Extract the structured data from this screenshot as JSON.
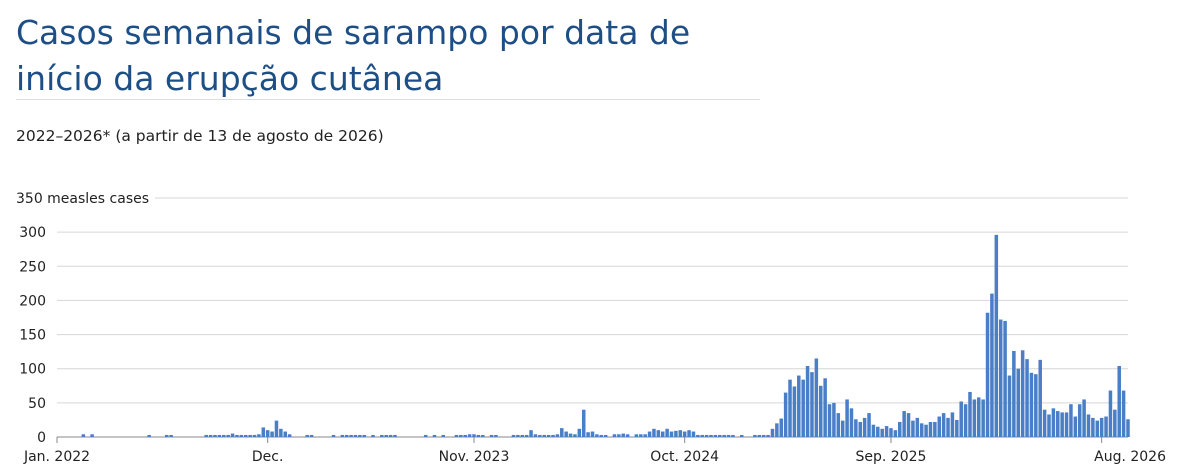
{
  "title": "Casos semanais de sarampo por data de início da erupção cutânea",
  "subtitle": "2022–2026* (a partir de 13 de agosto de 2026)",
  "chart_data": {
    "type": "bar",
    "ylabel": "350 measles cases",
    "ylim": [
      0,
      350
    ],
    "yticks": [
      0,
      50,
      100,
      150,
      200,
      250,
      300,
      350
    ],
    "ytick_labels": [
      "0",
      "50",
      "100",
      "150",
      "200",
      "250",
      "300",
      "350 measles cases"
    ],
    "xtick_labels": [
      "Jan. 2022",
      "Dec.",
      "Nov. 2023",
      "Oct. 2024",
      "Sep. 2025",
      "Aug. 2026"
    ],
    "xtick_week_index": [
      0,
      48,
      95,
      143,
      190,
      238
    ],
    "grid": true,
    "bar_color": "#4a7fc8",
    "series": [
      {
        "values": [
          0,
          0,
          0,
          0,
          0,
          0,
          4,
          0,
          4,
          0,
          0,
          0,
          0,
          0,
          0,
          0,
          0,
          0,
          0,
          0,
          0,
          3,
          0,
          0,
          0,
          3,
          3,
          0,
          0,
          0,
          0,
          0,
          0,
          0,
          3,
          3,
          3,
          3,
          3,
          3,
          5,
          3,
          3,
          3,
          3,
          3,
          4,
          14,
          10,
          8,
          24,
          12,
          8,
          4,
          0,
          0,
          0,
          3,
          3,
          0,
          0,
          0,
          0,
          3,
          0,
          3,
          3,
          3,
          3,
          3,
          3,
          0,
          3,
          0,
          3,
          3,
          3,
          3,
          0,
          0,
          0,
          0,
          0,
          0,
          3,
          0,
          3,
          0,
          3,
          0,
          0,
          3,
          3,
          3,
          4,
          4,
          3,
          3,
          0,
          3,
          3,
          0,
          0,
          0,
          3,
          3,
          3,
          3,
          10,
          4,
          3,
          3,
          3,
          3,
          4,
          13,
          8,
          5,
          4,
          12,
          40,
          7,
          8,
          4,
          3,
          3,
          0,
          4,
          4,
          5,
          4,
          0,
          4,
          4,
          4,
          8,
          12,
          10,
          8,
          12,
          8,
          9,
          10,
          8,
          10,
          8,
          3,
          3,
          3,
          3,
          3,
          3,
          3,
          3,
          3,
          0,
          3,
          0,
          0,
          3,
          3,
          3,
          3,
          12,
          20,
          27,
          65,
          84,
          74,
          90,
          84,
          104,
          95,
          115,
          75,
          86,
          48,
          50,
          35,
          24,
          55,
          42,
          26,
          22,
          28,
          35,
          18,
          15,
          12,
          16,
          13,
          10,
          22,
          38,
          35,
          24,
          28,
          20,
          18,
          22,
          22,
          30,
          35,
          28,
          36,
          25,
          52,
          48,
          66,
          55,
          58,
          55,
          182,
          210,
          296,
          172,
          170,
          90,
          126,
          100,
          127,
          114,
          94,
          92,
          113,
          40,
          33,
          42,
          38,
          36,
          36,
          48,
          30,
          48,
          55,
          33,
          28,
          24,
          28,
          30,
          68,
          40,
          104,
          68,
          26
        ]
      }
    ]
  }
}
